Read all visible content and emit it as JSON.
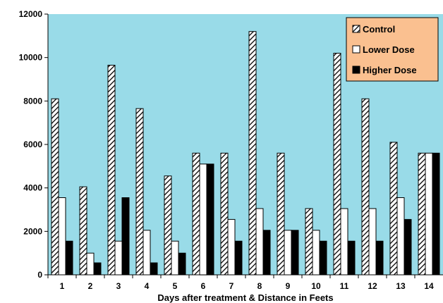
{
  "chart_data": {
    "type": "bar",
    "categories": [
      "1",
      "2",
      "3",
      "4",
      "5",
      "6",
      "7",
      "8",
      "9",
      "10",
      "11",
      "12",
      "13",
      "14"
    ],
    "series": [
      {
        "name": "Control",
        "pattern": "hatch",
        "values": [
          8100,
          4050,
          9650,
          7650,
          4550,
          5600,
          5600,
          11200,
          5600,
          3050,
          10200,
          8100,
          6100,
          5600
        ]
      },
      {
        "name": "Lower Dose",
        "pattern": "white",
        "values": [
          3550,
          1000,
          1550,
          2050,
          1550,
          5100,
          2550,
          3050,
          2050,
          2050,
          3050,
          3050,
          3550,
          5600
        ]
      },
      {
        "name": "Higher Dose",
        "pattern": "black",
        "values": [
          1550,
          550,
          3550,
          550,
          1000,
          5100,
          1550,
          2050,
          2050,
          1550,
          1550,
          1550,
          2550,
          5600
        ]
      }
    ],
    "title": "",
    "xlabel": "Days after treatment & Distance in Feets",
    "ylabel": "",
    "ylim": [
      0,
      12000
    ],
    "yticks": [
      "0",
      "2000",
      "4000",
      "6000",
      "8000",
      "10000",
      "12000"
    ],
    "grid": false,
    "legend_position": "top-right",
    "colors": {
      "plot_background": "#99dbe8",
      "legend_background": "#fac090",
      "bar_black": "#000000",
      "bar_white": "#ffffff"
    }
  }
}
